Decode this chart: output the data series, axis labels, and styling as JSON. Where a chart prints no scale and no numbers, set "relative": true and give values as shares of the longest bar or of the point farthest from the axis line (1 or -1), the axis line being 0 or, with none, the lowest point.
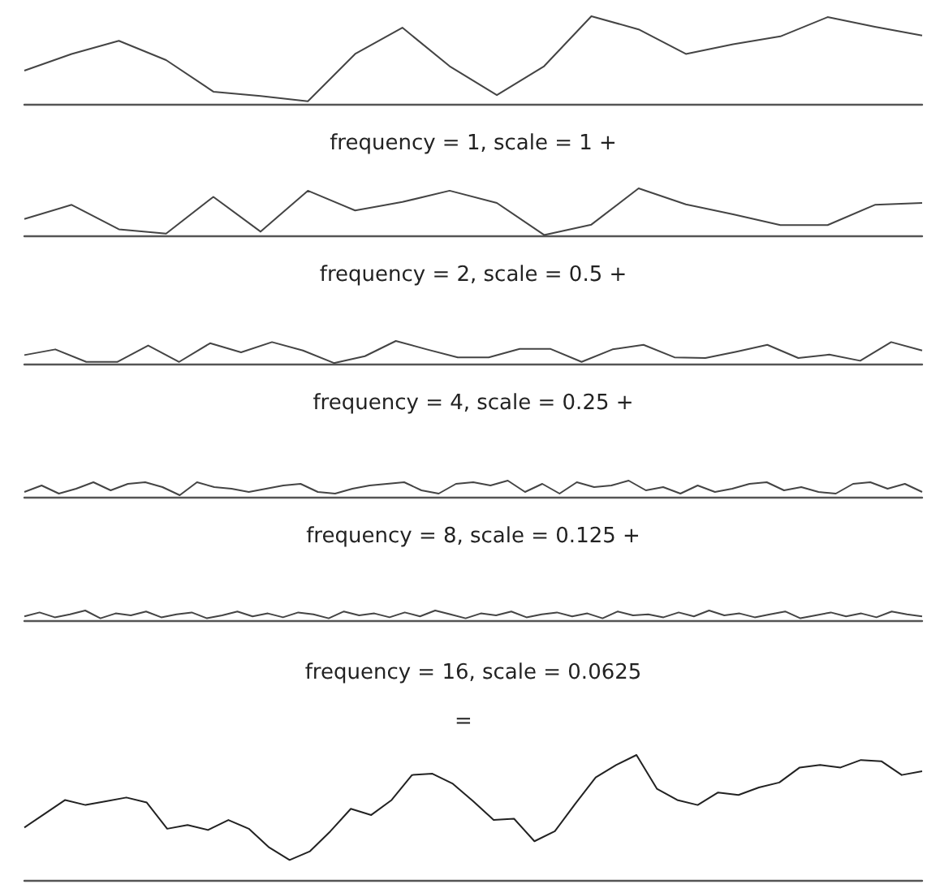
{
  "chart_data": [
    {
      "type": "line",
      "relative": true,
      "xlabel": "frequency = 1, scale = 1 +",
      "color": "#444444",
      "marker": "none",
      "categories": [
        null,
        null,
        null,
        null,
        null,
        null,
        null,
        null,
        null,
        null,
        null,
        null,
        null,
        null,
        null,
        null,
        null,
        null,
        null,
        null
      ],
      "values": [
        0.38,
        0.57,
        0.72,
        0.5,
        0.14,
        0.09,
        0.03,
        0.57,
        0.87,
        0.43,
        0.1,
        0.43,
        1.0,
        0.85,
        0.57,
        0.68,
        0.77,
        0.99,
        0.88,
        0.78
      ]
    },
    {
      "type": "line",
      "relative": true,
      "xlabel": "frequency = 2, scale = 0.5 +",
      "color": "#444444",
      "marker": "none",
      "categories": [
        null,
        null,
        null,
        null,
        null,
        null,
        null,
        null,
        null,
        null,
        null,
        null,
        null,
        null,
        null,
        null,
        null,
        null,
        null,
        null
      ],
      "values": [
        0.35,
        0.65,
        0.13,
        0.04,
        0.82,
        0.08,
        0.95,
        0.53,
        0.71,
        0.95,
        0.69,
        0.01,
        0.23,
        1.0,
        0.66,
        0.45,
        0.22,
        0.22,
        0.65,
        0.69
      ]
    },
    {
      "type": "line",
      "relative": true,
      "xlabel": "frequency = 4, scale = 0.25 +",
      "color": "#444444",
      "marker": "none",
      "categories": [
        null,
        null,
        null,
        null,
        null,
        null,
        null,
        null,
        null,
        null,
        null,
        null,
        null,
        null,
        null,
        null,
        null,
        null,
        null,
        null,
        null,
        null,
        null,
        null,
        null,
        null,
        null,
        null,
        null,
        null
      ],
      "values": [
        0.38,
        0.63,
        0.08,
        0.08,
        0.8,
        0.08,
        0.9,
        0.5,
        0.95,
        0.58,
        0.03,
        0.33,
        1.0,
        0.63,
        0.28,
        0.28,
        0.65,
        0.65,
        0.08,
        0.63,
        0.83,
        0.28,
        0.25,
        0.53,
        0.83,
        0.25,
        0.4,
        0.13,
        0.95,
        0.58
      ]
    },
    {
      "type": "line",
      "relative": true,
      "xlabel": "frequency = 8, scale = 0.125 +",
      "color": "#444444",
      "marker": "none",
      "categories": [
        null,
        null,
        null,
        null,
        null,
        null,
        null,
        null,
        null,
        null,
        null,
        null,
        null,
        null,
        null,
        null,
        null,
        null,
        null,
        null,
        null,
        null,
        null,
        null,
        null,
        null,
        null,
        null,
        null,
        null,
        null,
        null,
        null,
        null,
        null,
        null,
        null,
        null,
        null,
        null,
        null,
        null,
        null,
        null,
        null,
        null,
        null,
        null,
        null,
        null,
        null,
        null,
        null
      ],
      "values": [
        0.3,
        0.7,
        0.2,
        0.5,
        0.9,
        0.4,
        0.8,
        0.9,
        0.6,
        0.1,
        0.9,
        0.6,
        0.5,
        0.3,
        0.5,
        0.7,
        0.8,
        0.3,
        0.2,
        0.5,
        0.7,
        0.8,
        0.9,
        0.4,
        0.2,
        0.8,
        0.9,
        0.7,
        1.0,
        0.3,
        0.8,
        0.2,
        0.9,
        0.6,
        0.7,
        1.0,
        0.4,
        0.6,
        0.2,
        0.7,
        0.3,
        0.5,
        0.8,
        0.9,
        0.4,
        0.6,
        0.3,
        0.2,
        0.8,
        0.9,
        0.5,
        0.8,
        0.3
      ]
    },
    {
      "type": "line",
      "relative": true,
      "xlabel": "frequency = 16, scale = 0.0625",
      "color": "#444444",
      "marker": "none",
      "categories": [
        null,
        null,
        null,
        null,
        null,
        null,
        null,
        null,
        null,
        null,
        null,
        null,
        null,
        null,
        null,
        null,
        null,
        null,
        null,
        null,
        null,
        null,
        null,
        null,
        null,
        null,
        null,
        null,
        null,
        null,
        null,
        null,
        null,
        null,
        null,
        null,
        null,
        null,
        null,
        null,
        null,
        null,
        null,
        null,
        null,
        null,
        null,
        null,
        null,
        null,
        null,
        null,
        null,
        null,
        null,
        null,
        null,
        null,
        null,
        null
      ],
      "values": [
        0.4,
        0.8,
        0.3,
        0.6,
        1.0,
        0.2,
        0.7,
        0.5,
        0.9,
        0.3,
        0.6,
        0.8,
        0.2,
        0.5,
        0.9,
        0.4,
        0.7,
        0.3,
        0.8,
        0.6,
        0.2,
        0.9,
        0.5,
        0.7,
        0.3,
        0.8,
        0.4,
        1.0,
        0.6,
        0.2,
        0.7,
        0.5,
        0.9,
        0.3,
        0.6,
        0.8,
        0.4,
        0.7,
        0.2,
        0.9,
        0.5,
        0.6,
        0.3,
        0.8,
        0.4,
        1.0,
        0.5,
        0.7,
        0.3,
        0.6,
        0.9,
        0.2,
        0.5,
        0.8,
        0.4,
        0.7,
        0.3,
        0.9,
        0.6,
        0.4
      ]
    },
    {
      "type": "line",
      "relative": true,
      "title": "=",
      "color": "#222222",
      "marker": "none",
      "categories": [
        null,
        null,
        null,
        null,
        null,
        null,
        null,
        null,
        null,
        null,
        null,
        null,
        null,
        null,
        null,
        null,
        null,
        null,
        null,
        null,
        null,
        null,
        null,
        null,
        null,
        null,
        null,
        null,
        null,
        null,
        null,
        null,
        null,
        null,
        null,
        null,
        null,
        null,
        null,
        null,
        null,
        null,
        null,
        null,
        null
      ],
      "values": [
        0.42,
        0.53,
        0.64,
        0.6,
        0.63,
        0.66,
        0.62,
        0.41,
        0.44,
        0.4,
        0.48,
        0.41,
        0.26,
        0.16,
        0.23,
        0.39,
        0.57,
        0.52,
        0.64,
        0.84,
        0.85,
        0.77,
        0.63,
        0.48,
        0.49,
        0.31,
        0.39,
        0.61,
        0.82,
        0.92,
        1.0,
        0.73,
        0.64,
        0.6,
        0.7,
        0.68,
        0.74,
        0.78,
        0.9,
        0.92,
        0.9,
        0.96,
        0.95,
        0.84,
        0.87
      ]
    }
  ]
}
